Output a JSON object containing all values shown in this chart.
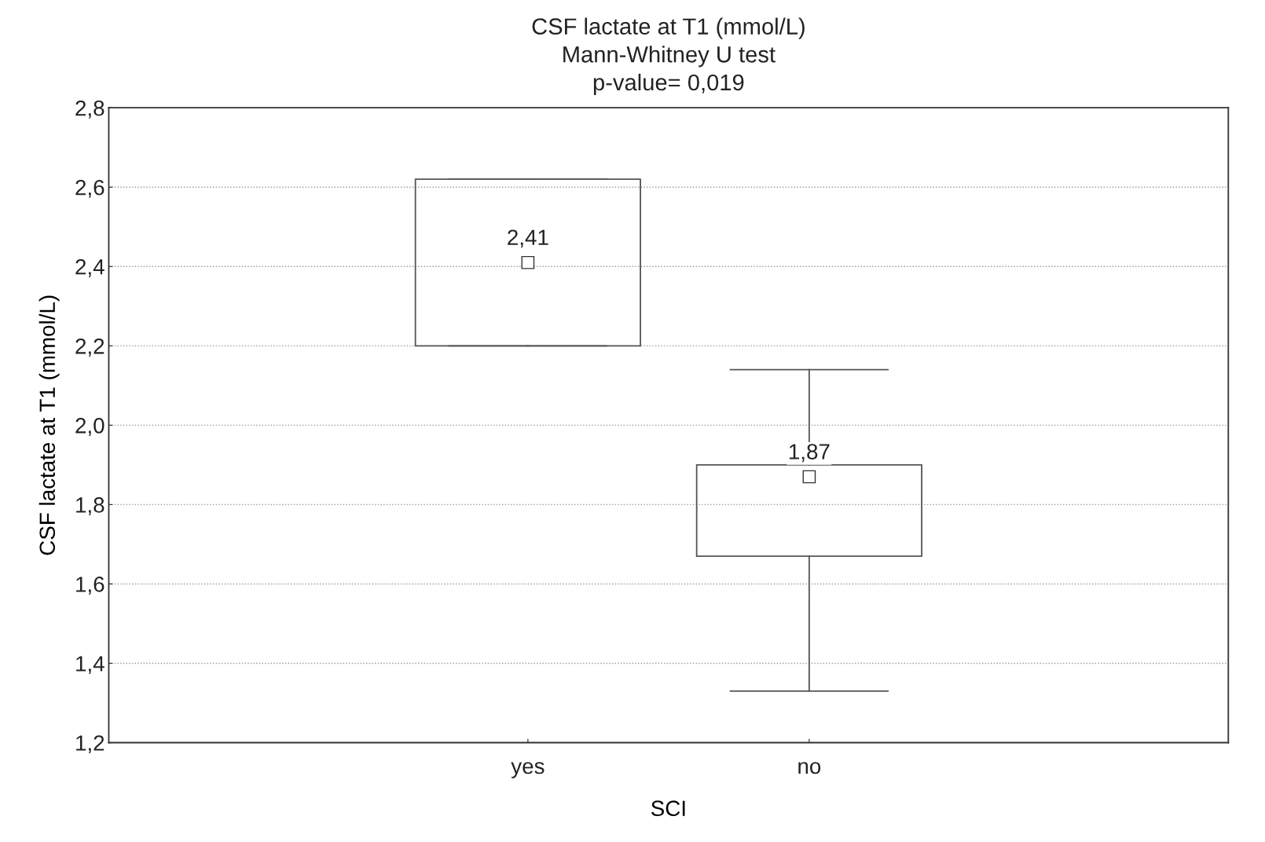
{
  "chart_data": {
    "type": "box",
    "title": "CSF lactate at T1 (mmol/L)\nMann-Whitney U test\np-value= 0,019",
    "xlabel": "SCI",
    "ylabel": "CSF lactate at T1 (mmol/L)",
    "categories": [
      "yes",
      "no"
    ],
    "boxes": [
      {
        "low": 2.2,
        "q1": 2.2,
        "median": 2.41,
        "q3": 2.62,
        "high": 2.62
      },
      {
        "low": 1.33,
        "q1": 1.67,
        "median": 1.87,
        "q3": 1.9,
        "high": 2.14
      }
    ],
    "ylim": [
      1.2,
      2.8
    ],
    "yticks": [
      {
        "value": 1.2,
        "label": "1,2"
      },
      {
        "value": 1.4,
        "label": "1,4"
      },
      {
        "value": 1.6,
        "label": "1,6"
      },
      {
        "value": 1.8,
        "label": "1,8"
      },
      {
        "value": 2.0,
        "label": "2,0"
      },
      {
        "value": 2.2,
        "label": "2,2"
      },
      {
        "value": 2.4,
        "label": "2,4"
      },
      {
        "value": 2.6,
        "label": "2,6"
      },
      {
        "value": 2.8,
        "label": "2,8"
      }
    ],
    "value_labels": [
      "2,41",
      "1,87"
    ],
    "grid": "y",
    "marker": "square"
  }
}
